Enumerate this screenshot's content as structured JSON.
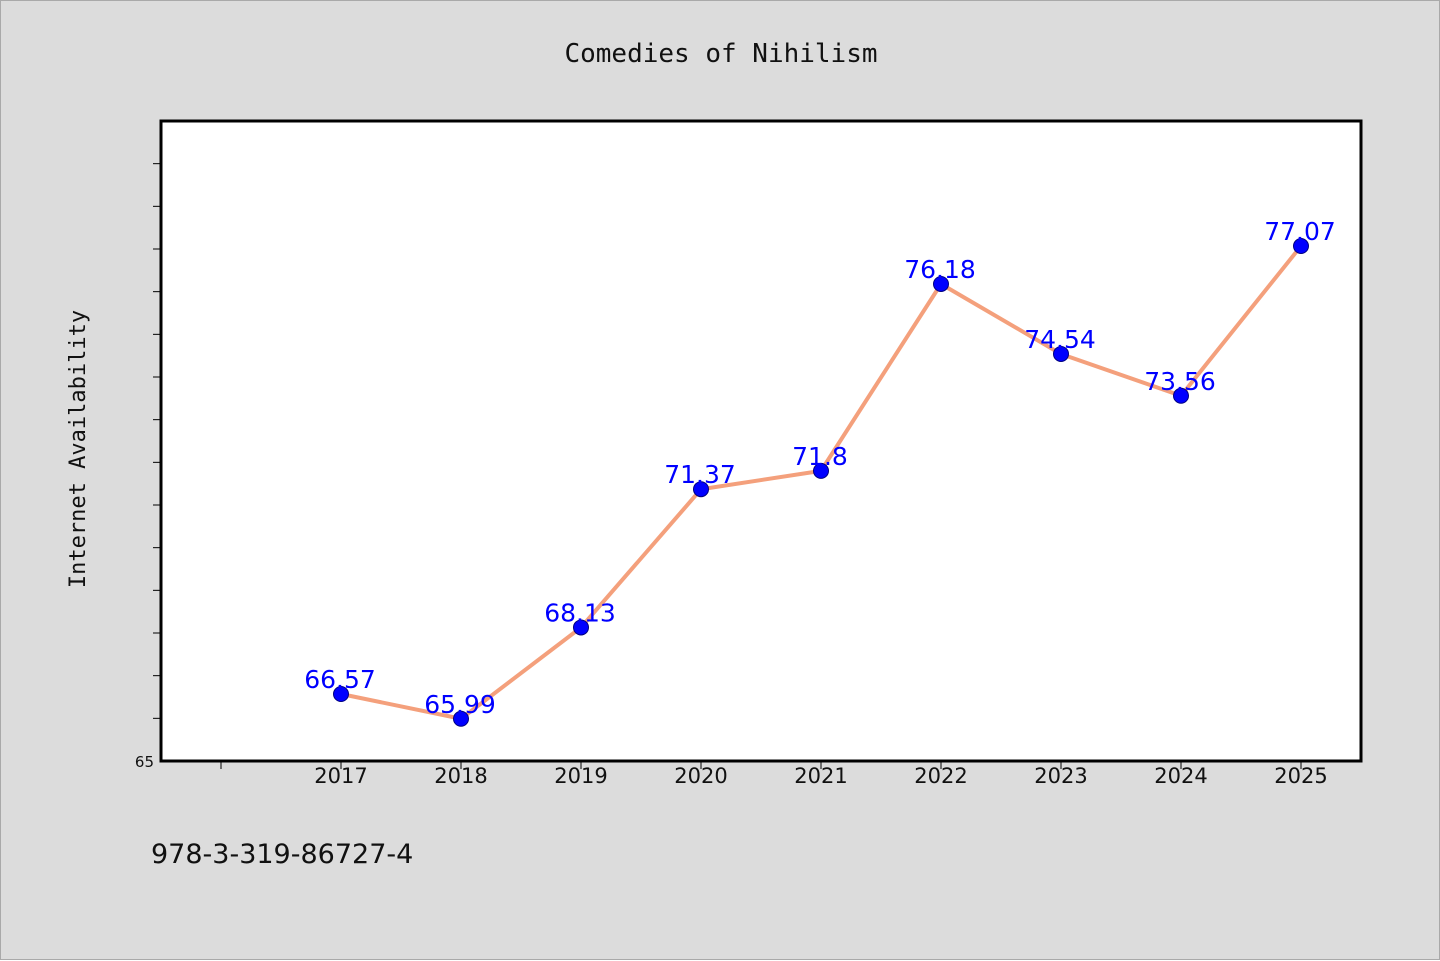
{
  "chart_data": {
    "type": "line",
    "title": "Comedies of Nihilism",
    "xlabel": "",
    "ylabel": "Internet Availability",
    "categories": [
      "2017",
      "2018",
      "2019",
      "2020",
      "2021",
      "2022",
      "2023",
      "2024",
      "2025"
    ],
    "series": [
      {
        "values": [
          66.57,
          65.99,
          68.13,
          71.37,
          71.8,
          76.18,
          74.54,
          73.56,
          77.07
        ],
        "line_color": "#f4a07c",
        "marker_color": "#0000ff",
        "label_color": "#0000ff"
      }
    ],
    "ylim": [
      65,
      80
    ],
    "ytick_labels": [
      "65"
    ],
    "grid": false,
    "legend": "none"
  },
  "footnote": "978-3-319-86727-4",
  "colors": {
    "background": "#dcdcdc",
    "plot_background": "#ffffff",
    "line": "#f4a07c",
    "marker": "#0000ff",
    "data_label": "#0000ff"
  }
}
